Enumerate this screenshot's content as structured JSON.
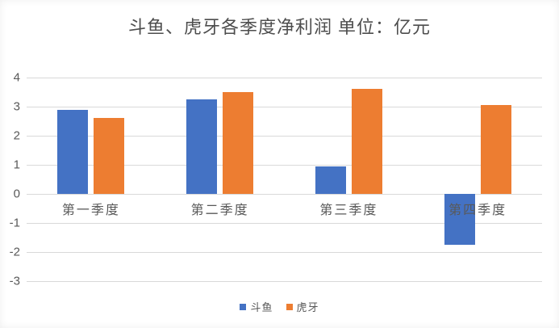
{
  "chart_data": {
    "type": "bar",
    "title": "斗鱼、虎牙各季度净利润 单位：亿元",
    "title_unit": "亿元",
    "categories": [
      "第一季度",
      "第二季度",
      "第三季度",
      "第四季度"
    ],
    "series": [
      {
        "id": "douyu",
        "name": "斗鱼",
        "color": "#4472c4",
        "values": [
          2.9,
          3.25,
          0.95,
          -1.75
        ]
      },
      {
        "id": "huya",
        "name": "虎牙",
        "color": "#ed7d31",
        "values": [
          2.6,
          3.5,
          3.6,
          3.05
        ]
      }
    ],
    "ylim": [
      -3,
      4
    ],
    "yticks": [
      4,
      3,
      2,
      1,
      0,
      -1,
      -2,
      -3
    ],
    "grid": "horizontal-only",
    "gridline_color": "#d9d9d9",
    "axis_text_color": "#595959",
    "legend_position": "bottom",
    "xlabel": "",
    "ylabel": ""
  }
}
